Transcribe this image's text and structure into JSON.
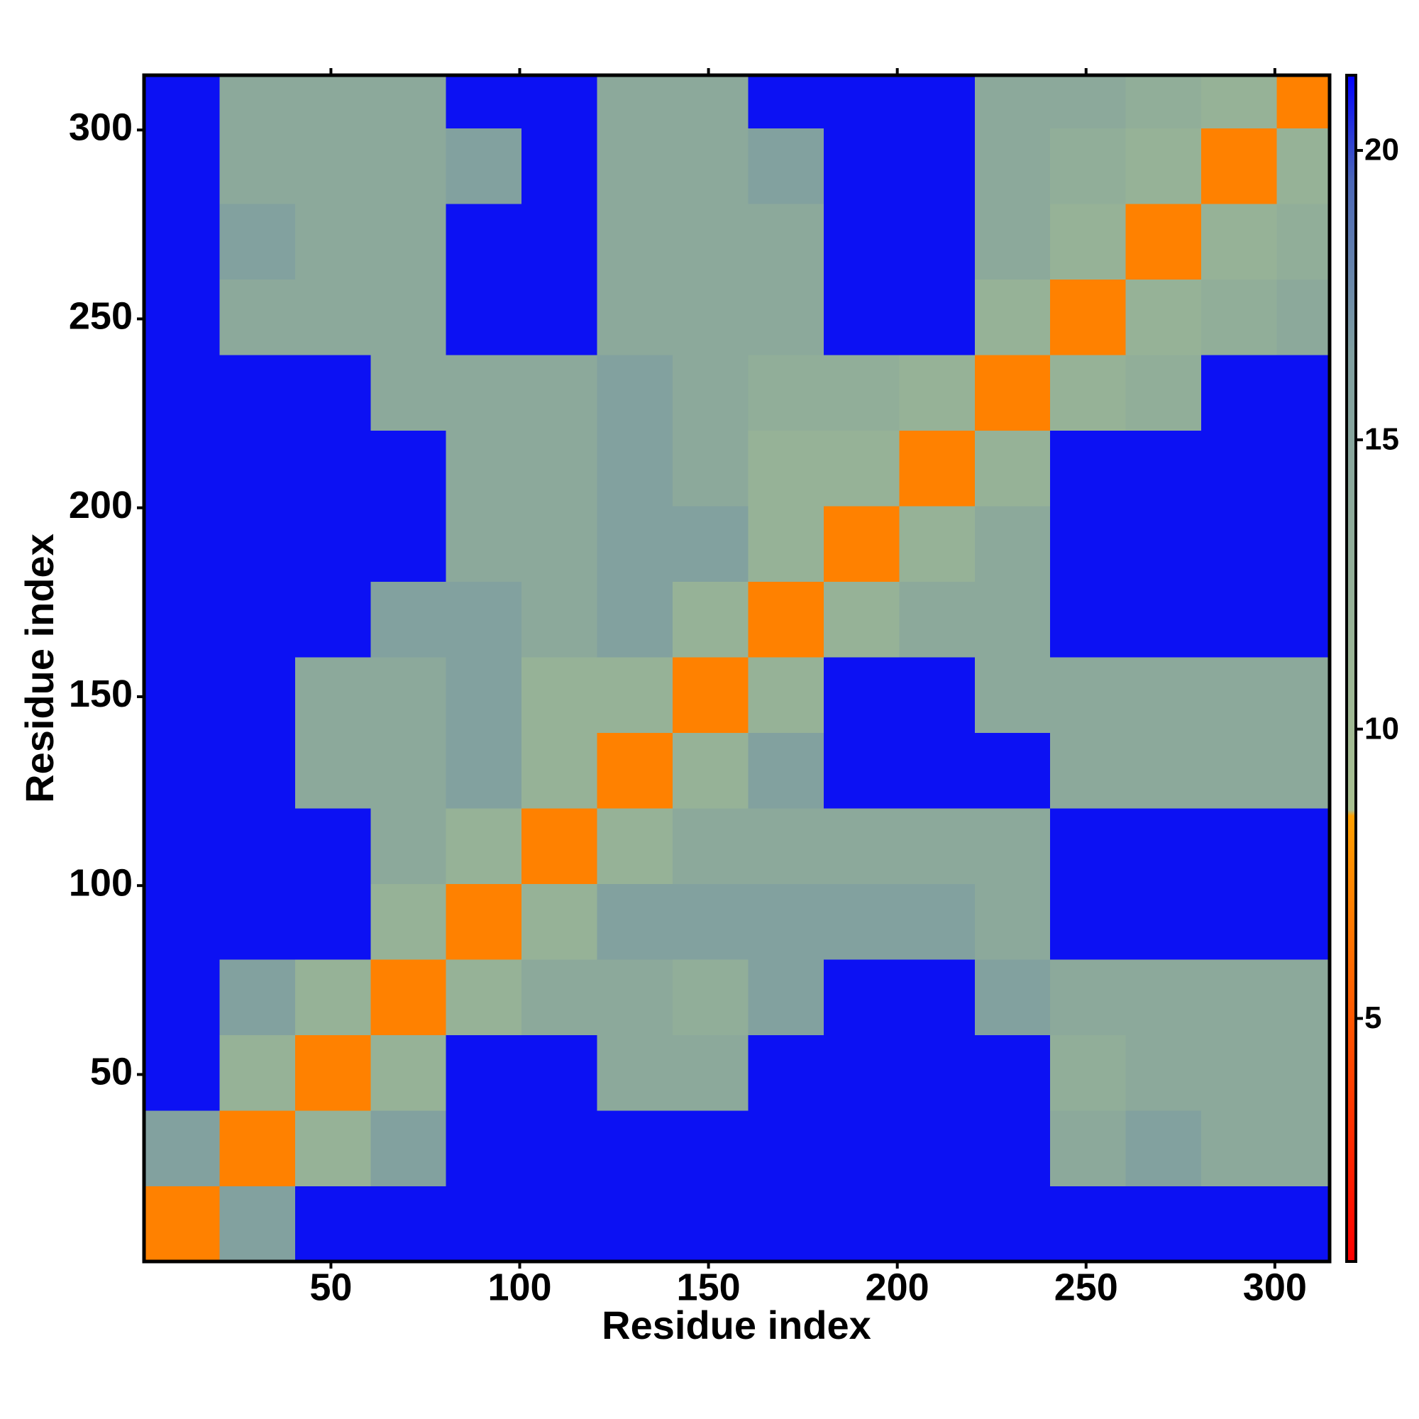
{
  "chart_data": {
    "type": "heatmap",
    "x_label": "Residue index",
    "y_label": "Residue index",
    "xbins": [
      0.5,
      20.5,
      40.5,
      60.5,
      80.5,
      100.5,
      120.5,
      140.5,
      160.5,
      180.5,
      200.5,
      220.5,
      240.5,
      260.5,
      280.5,
      300.5,
      314.5
    ],
    "ybins": [
      0.5,
      20.5,
      40.5,
      60.5,
      80.5,
      100.5,
      120.5,
      140.5,
      160.5,
      180.5,
      200.5,
      220.5,
      240.5,
      260.5,
      280.5,
      300.5,
      314.5
    ],
    "z": [
      [
        7,
        16,
        21,
        21,
        21,
        21,
        21,
        21,
        21,
        21,
        21,
        21,
        21,
        21,
        21,
        21
      ],
      [
        16,
        7,
        12,
        16,
        21,
        21,
        21,
        21,
        21,
        21,
        21,
        21,
        14,
        16,
        14,
        14
      ],
      [
        21,
        12,
        7,
        12,
        21,
        21,
        14,
        14,
        21,
        21,
        21,
        21,
        13,
        14,
        14,
        14
      ],
      [
        21,
        16,
        12,
        7,
        12,
        14,
        14,
        13,
        16,
        21,
        21,
        16,
        14,
        14,
        14,
        14
      ],
      [
        21,
        21,
        21,
        12,
        7,
        12,
        16,
        16,
        16,
        16,
        16,
        14,
        21,
        21,
        21,
        21
      ],
      [
        21,
        21,
        21,
        14,
        12,
        7,
        12,
        14,
        14,
        14,
        14,
        14,
        21,
        21,
        21,
        21
      ],
      [
        21,
        21,
        14,
        14,
        16,
        12,
        7,
        12,
        16,
        21,
        21,
        21,
        14,
        14,
        14,
        14
      ],
      [
        21,
        21,
        14,
        14,
        16,
        12,
        12,
        7,
        12,
        21,
        21,
        14,
        14,
        14,
        14,
        14
      ],
      [
        21,
        21,
        21,
        16,
        16,
        14,
        16,
        12,
        7,
        12,
        14,
        14,
        21,
        21,
        21,
        21
      ],
      [
        21,
        21,
        21,
        21,
        14,
        14,
        16,
        16,
        12,
        7,
        12,
        14,
        21,
        21,
        21,
        21
      ],
      [
        21,
        21,
        21,
        21,
        14,
        14,
        16,
        14,
        12,
        12,
        7,
        12,
        21,
        21,
        21,
        21
      ],
      [
        21,
        21,
        21,
        14,
        14,
        14,
        16,
        14,
        13,
        13,
        12,
        7,
        12,
        13,
        21,
        21
      ],
      [
        21,
        14,
        14,
        14,
        21,
        21,
        14,
        14,
        14,
        21,
        21,
        12,
        7,
        12,
        13,
        14
      ],
      [
        21,
        16,
        14,
        14,
        21,
        21,
        14,
        14,
        14,
        21,
        21,
        14,
        12,
        7,
        12,
        13
      ],
      [
        21,
        14,
        14,
        14,
        16,
        21,
        14,
        14,
        16,
        21,
        21,
        14,
        13,
        12,
        7,
        12
      ],
      [
        21,
        14,
        14,
        14,
        21,
        21,
        14,
        14,
        21,
        21,
        21,
        14,
        14,
        13,
        12,
        7
      ]
    ],
    "xlim": [
      0.5,
      314.5
    ],
    "ylim": [
      0.5,
      314.5
    ],
    "xticks": [
      50,
      100,
      150,
      200,
      250,
      300
    ],
    "yticks": [
      50,
      100,
      150,
      200,
      250,
      300
    ],
    "zlim": [
      0.8,
      21.3
    ],
    "zticks": [
      5,
      10,
      15,
      20
    ],
    "colorscale": [
      {
        "value": 0.8,
        "color": "#ff0000"
      },
      {
        "value": 8.5,
        "color": "#ffa000"
      },
      {
        "value": 8.6,
        "color": "#a8c090"
      },
      {
        "value": 16.5,
        "color": "#7f9fa0"
      },
      {
        "value": 19.5,
        "color": "#4a66b8"
      },
      {
        "value": 21.3,
        "color": "#0000ff"
      }
    ]
  }
}
